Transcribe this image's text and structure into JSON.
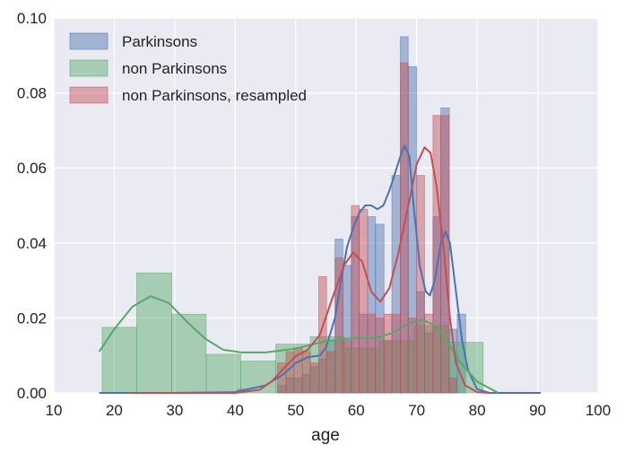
{
  "chart_data": {
    "type": "histogram",
    "title": "",
    "xlabel": "age",
    "ylabel": "",
    "xlim": [
      10,
      100
    ],
    "ylim": [
      0,
      0.1
    ],
    "xticks": [
      10,
      20,
      30,
      40,
      50,
      60,
      70,
      80,
      90,
      100
    ],
    "yticks": [
      0.0,
      0.02,
      0.04,
      0.06,
      0.08,
      0.1
    ],
    "xtick_labels": [
      "10",
      "20",
      "30",
      "40",
      "50",
      "60",
      "70",
      "80",
      "90",
      "100"
    ],
    "ytick_labels": [
      "0.00",
      "0.02",
      "0.04",
      "0.06",
      "0.08",
      "0.10"
    ],
    "grid": true,
    "legend_position": "top-left",
    "background": "#eaeaf2",
    "series": [
      {
        "name": "Parkinsons",
        "color": "#4c72b0",
        "bins": [
          {
            "x0": 40.3,
            "x1": 41.7,
            "y": 0.001
          },
          {
            "x0": 47.0,
            "x1": 48.4,
            "y": 0.002
          },
          {
            "x0": 48.4,
            "x1": 49.7,
            "y": 0.004
          },
          {
            "x0": 49.7,
            "x1": 51.1,
            "y": 0.004
          },
          {
            "x0": 51.1,
            "x1": 52.4,
            "y": 0.005
          },
          {
            "x0": 52.4,
            "x1": 53.8,
            "y": 0.007
          },
          {
            "x0": 53.8,
            "x1": 55.1,
            "y": 0.009
          },
          {
            "x0": 55.1,
            "x1": 56.5,
            "y": 0.014
          },
          {
            "x0": 56.5,
            "x1": 57.8,
            "y": 0.041
          },
          {
            "x0": 57.8,
            "x1": 59.2,
            "y": 0.034
          },
          {
            "x0": 59.2,
            "x1": 60.5,
            "y": 0.047
          },
          {
            "x0": 60.5,
            "x1": 61.9,
            "y": 0.021
          },
          {
            "x0": 61.9,
            "x1": 63.2,
            "y": 0.047
          },
          {
            "x0": 63.2,
            "x1": 64.6,
            "y": 0.045
          },
          {
            "x0": 64.6,
            "x1": 65.9,
            "y": 0.014
          },
          {
            "x0": 65.9,
            "x1": 67.3,
            "y": 0.058
          },
          {
            "x0": 67.3,
            "x1": 68.6,
            "y": 0.095
          },
          {
            "x0": 68.6,
            "x1": 70.0,
            "y": 0.087
          },
          {
            "x0": 70.0,
            "x1": 71.3,
            "y": 0.027
          },
          {
            "x0": 71.3,
            "x1": 72.7,
            "y": 0.016
          },
          {
            "x0": 72.7,
            "x1": 74.0,
            "y": 0.047
          },
          {
            "x0": 74.0,
            "x1": 75.4,
            "y": 0.076
          },
          {
            "x0": 75.4,
            "x1": 76.7,
            "y": 0.017
          },
          {
            "x0": 76.7,
            "x1": 78.1,
            "y": 0.021
          }
        ],
        "kde": [
          [
            17.5,
            0.0
          ],
          [
            30,
            0.0
          ],
          [
            40,
            0.0002
          ],
          [
            45,
            0.002
          ],
          [
            48,
            0.005
          ],
          [
            50,
            0.008
          ],
          [
            52,
            0.0095
          ],
          [
            54,
            0.01
          ],
          [
            55,
            0.012
          ],
          [
            56.5,
            0.02
          ],
          [
            57.5,
            0.03
          ],
          [
            58.5,
            0.039
          ],
          [
            59.5,
            0.044
          ],
          [
            60.5,
            0.048
          ],
          [
            61.5,
            0.05
          ],
          [
            62.5,
            0.05
          ],
          [
            63.5,
            0.049
          ],
          [
            64.5,
            0.05
          ],
          [
            65.5,
            0.054
          ],
          [
            66.5,
            0.059
          ],
          [
            67.5,
            0.064
          ],
          [
            68,
            0.066
          ],
          [
            68.8,
            0.063
          ],
          [
            69.5,
            0.05
          ],
          [
            70.5,
            0.034
          ],
          [
            71.5,
            0.027
          ],
          [
            72.2,
            0.026
          ],
          [
            73,
            0.03
          ],
          [
            74,
            0.04
          ],
          [
            74.8,
            0.043
          ],
          [
            75.5,
            0.04
          ],
          [
            76.5,
            0.027
          ],
          [
            77.5,
            0.014
          ],
          [
            78.5,
            0.006
          ],
          [
            80,
            0.001
          ],
          [
            82,
            0.0
          ],
          [
            90.5,
            0.0
          ]
        ]
      },
      {
        "name": "non Parkinsons",
        "color": "#55a868",
        "bins": [
          {
            "x0": 18.0,
            "x1": 23.7,
            "y": 0.0175
          },
          {
            "x0": 23.7,
            "x1": 29.5,
            "y": 0.032
          },
          {
            "x0": 29.5,
            "x1": 35.2,
            "y": 0.021
          },
          {
            "x0": 35.2,
            "x1": 40.9,
            "y": 0.0103
          },
          {
            "x0": 40.9,
            "x1": 46.7,
            "y": 0.0085
          },
          {
            "x0": 46.7,
            "x1": 52.4,
            "y": 0.013
          },
          {
            "x0": 52.4,
            "x1": 58.1,
            "y": 0.015
          },
          {
            "x0": 58.1,
            "x1": 63.8,
            "y": 0.012
          },
          {
            "x0": 63.8,
            "x1": 69.6,
            "y": 0.014
          },
          {
            "x0": 69.6,
            "x1": 75.3,
            "y": 0.018
          },
          {
            "x0": 75.3,
            "x1": 81.0,
            "y": 0.0135
          }
        ],
        "kde": [
          [
            17.5,
            0.011
          ],
          [
            20,
            0.017
          ],
          [
            23,
            0.023
          ],
          [
            26,
            0.0258
          ],
          [
            29,
            0.024
          ],
          [
            32,
            0.019
          ],
          [
            35,
            0.0145
          ],
          [
            38,
            0.0115
          ],
          [
            41,
            0.0108
          ],
          [
            45,
            0.0108
          ],
          [
            50,
            0.0118
          ],
          [
            55,
            0.0138
          ],
          [
            60,
            0.0147
          ],
          [
            63,
            0.0145
          ],
          [
            66,
            0.016
          ],
          [
            69,
            0.0188
          ],
          [
            71,
            0.0195
          ],
          [
            73,
            0.018
          ],
          [
            75,
            0.014
          ],
          [
            77,
            0.0085
          ],
          [
            80,
            0.003
          ],
          [
            83.5,
            0.0
          ]
        ]
      },
      {
        "name": "non Parkinsons, resampled",
        "color": "#c44e52",
        "bins": [
          {
            "x0": 47.0,
            "x1": 48.4,
            "y": 0.008
          },
          {
            "x0": 48.4,
            "x1": 49.7,
            "y": 0.011
          },
          {
            "x0": 49.7,
            "x1": 51.1,
            "y": 0.012
          },
          {
            "x0": 51.1,
            "x1": 52.4,
            "y": 0.011
          },
          {
            "x0": 52.4,
            "x1": 53.8,
            "y": 0.008
          },
          {
            "x0": 53.8,
            "x1": 55.1,
            "y": 0.031
          },
          {
            "x0": 55.1,
            "x1": 56.5,
            "y": 0.011
          },
          {
            "x0": 56.5,
            "x1": 57.8,
            "y": 0.036
          },
          {
            "x0": 57.8,
            "x1": 59.2,
            "y": 0.014
          },
          {
            "x0": 59.2,
            "x1": 60.5,
            "y": 0.05
          },
          {
            "x0": 60.5,
            "x1": 61.9,
            "y": 0.049
          },
          {
            "x0": 61.9,
            "x1": 63.2,
            "y": 0.021
          },
          {
            "x0": 63.2,
            "x1": 64.6,
            "y": 0.02
          },
          {
            "x0": 64.6,
            "x1": 65.9,
            "y": 0.021
          },
          {
            "x0": 65.9,
            "x1": 67.3,
            "y": 0.021
          },
          {
            "x0": 67.3,
            "x1": 68.6,
            "y": 0.088
          },
          {
            "x0": 68.6,
            "x1": 70.0,
            "y": 0.02
          },
          {
            "x0": 70.0,
            "x1": 71.3,
            "y": 0.058
          },
          {
            "x0": 71.3,
            "x1": 72.7,
            "y": 0.021
          },
          {
            "x0": 72.7,
            "x1": 74.0,
            "y": 0.074
          },
          {
            "x0": 74.0,
            "x1": 75.4,
            "y": 0.074
          },
          {
            "x0": 75.4,
            "x1": 76.7,
            "y": 0.004
          }
        ],
        "kde": [
          [
            22.5,
            0.0
          ],
          [
            40,
            0.0
          ],
          [
            44,
            0.0008
          ],
          [
            46,
            0.003
          ],
          [
            48,
            0.0065
          ],
          [
            50,
            0.0098
          ],
          [
            52,
            0.0115
          ],
          [
            54,
            0.0155
          ],
          [
            56,
            0.025
          ],
          [
            58,
            0.034
          ],
          [
            59.5,
            0.0375
          ],
          [
            61,
            0.035
          ],
          [
            62.5,
            0.027
          ],
          [
            64,
            0.0243
          ],
          [
            65.5,
            0.028
          ],
          [
            67,
            0.0375
          ],
          [
            68.5,
            0.049
          ],
          [
            70,
            0.061
          ],
          [
            71.3,
            0.0655
          ],
          [
            72.3,
            0.064
          ],
          [
            73.3,
            0.055
          ],
          [
            74.5,
            0.038
          ],
          [
            75.5,
            0.02
          ],
          [
            76.5,
            0.008
          ],
          [
            78,
            0.002
          ],
          [
            80,
            0.0002
          ],
          [
            82,
            0.0
          ]
        ]
      }
    ]
  }
}
